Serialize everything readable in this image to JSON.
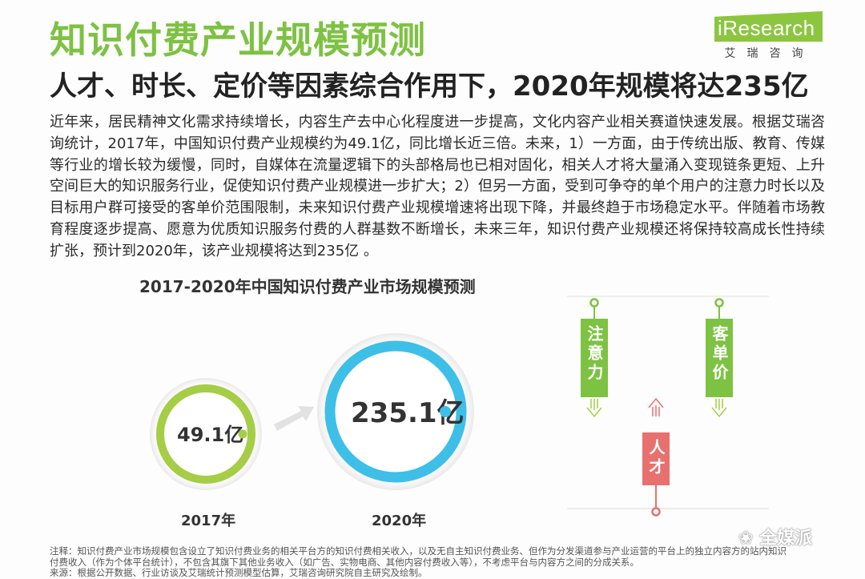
{
  "header": {
    "title": "知识付费产业规模预测",
    "subtitle": "人才、时长、定价等因素综合作用下，2020年规模将达235亿"
  },
  "logo": {
    "text": "iResearch",
    "cn": "艾瑞咨询",
    "color": "#8cc63f"
  },
  "body": {
    "paragraph": "近年来，居民精神文化需求持续增长，内容生产去中心化程度进一步提高，文化内容产业相关赛道快速发展。根据艾瑞咨询统计，2017年，中国知识付费产业规模约为49.1亿，同比增长近三倍。未来，1）一方面，由于传统出版、教育、传媒等行业的增长较为缓慢，同时，自媒体在流量逻辑下的头部格局也已相对固化，相关人才将大量涌入变现链条更短、上升空间巨大的知识服务行业，促使知识付费产业规模进一步扩大；2）但另一方面，受到可争夺的单个用户的注意力时长以及目标用户群可接受的客单价范围限制，未来知识付费产业规模增速将出现下降，并最终趋于市场稳定水平。伴随着市场教育程度逐步提高、愿意为优质知识服务付费的人群基数不断增长，未来三年，知识付费产业规模还将保持较高成长性持续扩张，预计到2020年，该产业规模将达到235亿 。"
  },
  "chart": {
    "title": "2017-2020年中国知识付费产业市场规模预测",
    "items": [
      {
        "year": "2017年",
        "value_label": "49.1亿",
        "color": "#a5cd45"
      },
      {
        "year": "2020年",
        "value_label": "235.1亿",
        "color": "#3dbfe8"
      }
    ]
  },
  "factors": {
    "attention": {
      "label": "注意力",
      "color": "#7dc242"
    },
    "price": {
      "label": "客单价",
      "color": "#7dc242"
    },
    "talent": {
      "label": "人才",
      "color": "#e8706f"
    }
  },
  "footnote": {
    "lines": [
      "注释：知识付费产业市场规模包含设立了知识付费业务的相关平台方的知识付费相关收入，以及无自主知识付费业务、但作为分发渠道参与产业运营的平台上的独立内容方的站内知识",
      "付费收入（作为个体平台统计），不包含其旗下其他业务收入（如广告、实物电商、其他内容付费收入等），不考虑平台与内容方之间的分成关系。",
      "来源：根据公开数据、行业访谈及艾瑞统计预测模型估算，艾瑞咨询研究院自主研究及绘制。"
    ]
  },
  "watermark": {
    "text": "全媒派"
  }
}
